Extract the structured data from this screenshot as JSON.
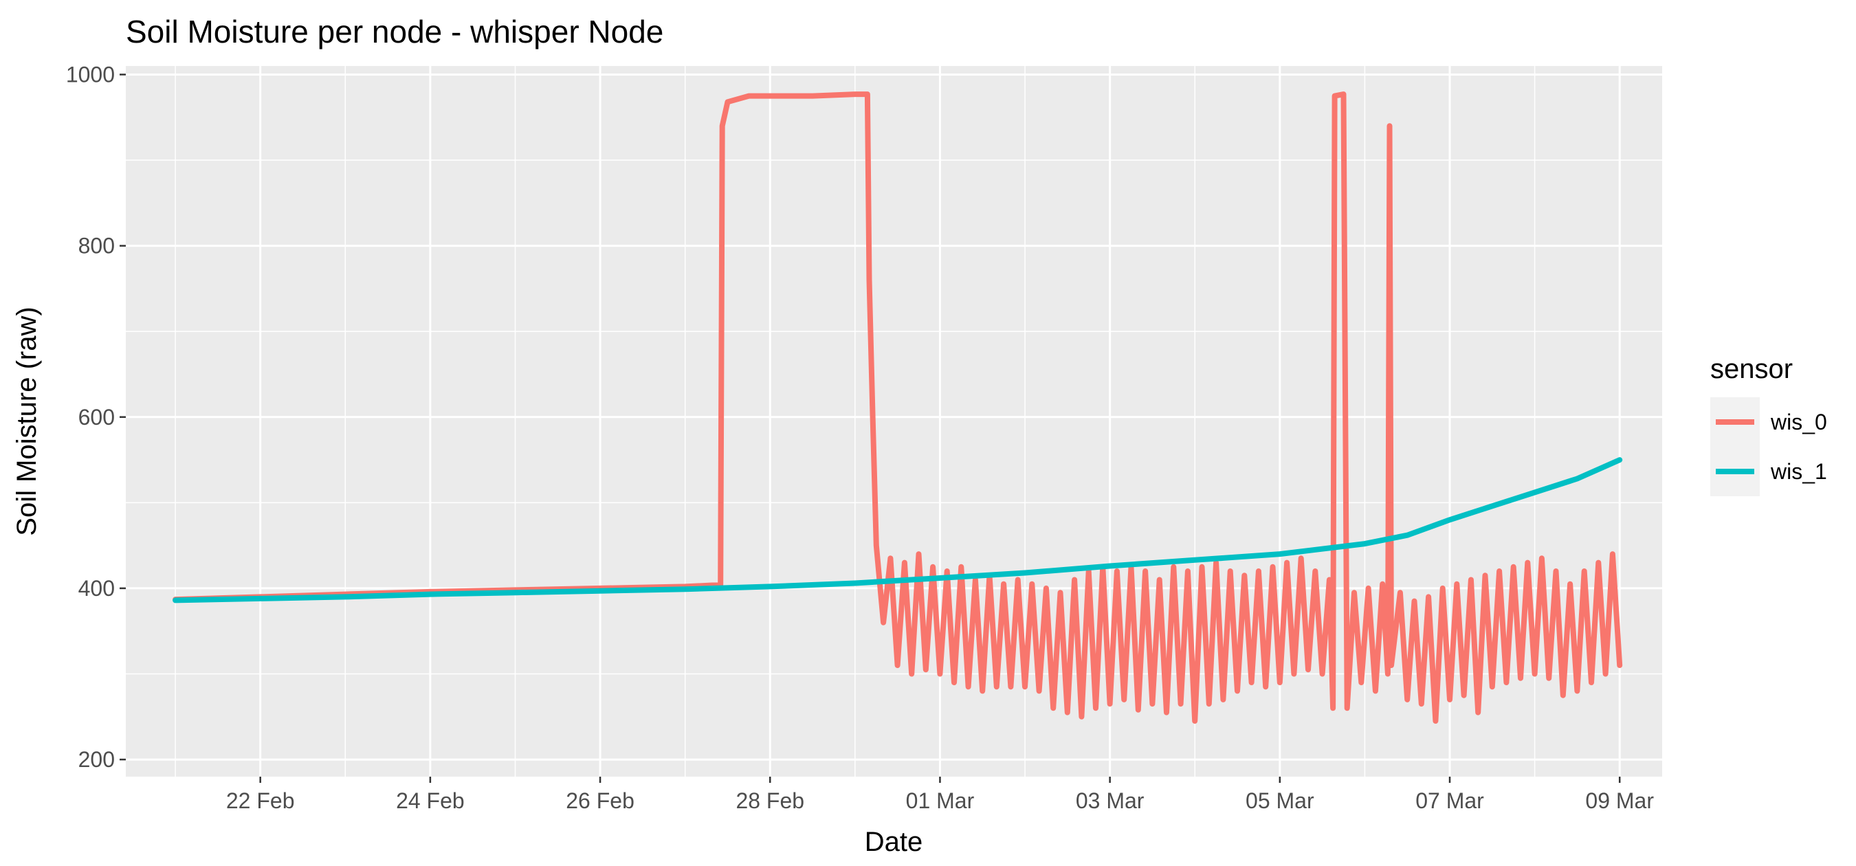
{
  "chart_data": {
    "type": "line",
    "title": "Soil Moisture per node - whisper Node",
    "xlabel": "Date",
    "ylabel": "Soil Moisture (raw)",
    "ylim": [
      180,
      1010
    ],
    "xlim": [
      "2024-02-20T10:00",
      "2024-03-09T12:00"
    ],
    "x_ticks": [
      {
        "date": "2024-02-22",
        "label": "22 Feb"
      },
      {
        "date": "2024-02-24",
        "label": "24 Feb"
      },
      {
        "date": "2024-02-26",
        "label": "26 Feb"
      },
      {
        "date": "2024-02-28",
        "label": "28 Feb"
      },
      {
        "date": "2024-03-01",
        "label": "01 Mar"
      },
      {
        "date": "2024-03-03",
        "label": "03 Mar"
      },
      {
        "date": "2024-03-05",
        "label": "05 Mar"
      },
      {
        "date": "2024-03-07",
        "label": "07 Mar"
      },
      {
        "date": "2024-03-09",
        "label": "09 Mar"
      }
    ],
    "y_ticks": [
      200,
      400,
      600,
      800,
      1000
    ],
    "grid": true,
    "background": "#EBEBEB",
    "legend": {
      "title": "sensor",
      "position": "right"
    },
    "series": [
      {
        "name": "wis_0",
        "color": "#F8766D",
        "points": [
          [
            "2024-02-21T00:00",
            387
          ],
          [
            "2024-02-22T00:00",
            390
          ],
          [
            "2024-02-23T00:00",
            393
          ],
          [
            "2024-02-24T00:00",
            396
          ],
          [
            "2024-02-25T00:00",
            398
          ],
          [
            "2024-02-26T00:00",
            400
          ],
          [
            "2024-02-27T00:00",
            402
          ],
          [
            "2024-02-27T10:00",
            404
          ],
          [
            "2024-02-27T10:30",
            940
          ],
          [
            "2024-02-27T12:00",
            968
          ],
          [
            "2024-02-27T18:00",
            975
          ],
          [
            "2024-02-28T12:00",
            975
          ],
          [
            "2024-02-29T00:00",
            977
          ],
          [
            "2024-02-29T03:30",
            977
          ],
          [
            "2024-02-29T04:00",
            760
          ],
          [
            "2024-02-29T05:00",
            600
          ],
          [
            "2024-02-29T06:00",
            450
          ],
          [
            "2024-02-29T08:00",
            360
          ],
          [
            "2024-02-29T10:00",
            435
          ],
          [
            "2024-02-29T12:00",
            310
          ],
          [
            "2024-02-29T14:00",
            430
          ],
          [
            "2024-02-29T16:00",
            300
          ],
          [
            "2024-02-29T18:00",
            440
          ],
          [
            "2024-02-29T20:00",
            305
          ],
          [
            "2024-02-29T22:00",
            425
          ],
          [
            "2024-03-01T00:00",
            300
          ],
          [
            "2024-03-01T02:00",
            420
          ],
          [
            "2024-03-01T04:00",
            290
          ],
          [
            "2024-03-01T06:00",
            425
          ],
          [
            "2024-03-01T08:00",
            285
          ],
          [
            "2024-03-01T10:00",
            410
          ],
          [
            "2024-03-01T12:00",
            280
          ],
          [
            "2024-03-01T14:00",
            415
          ],
          [
            "2024-03-01T16:00",
            285
          ],
          [
            "2024-03-01T18:00",
            405
          ],
          [
            "2024-03-01T20:00",
            285
          ],
          [
            "2024-03-01T22:00",
            410
          ],
          [
            "2024-03-02T00:00",
            285
          ],
          [
            "2024-03-02T02:00",
            405
          ],
          [
            "2024-03-02T04:00",
            280
          ],
          [
            "2024-03-02T06:00",
            400
          ],
          [
            "2024-03-02T08:00",
            260
          ],
          [
            "2024-03-02T10:00",
            395
          ],
          [
            "2024-03-02T12:00",
            255
          ],
          [
            "2024-03-02T14:00",
            410
          ],
          [
            "2024-03-02T16:00",
            250
          ],
          [
            "2024-03-02T18:00",
            420
          ],
          [
            "2024-03-02T20:00",
            260
          ],
          [
            "2024-03-02T22:00",
            425
          ],
          [
            "2024-03-03T00:00",
            265
          ],
          [
            "2024-03-03T02:00",
            420
          ],
          [
            "2024-03-03T04:00",
            270
          ],
          [
            "2024-03-03T06:00",
            425
          ],
          [
            "2024-03-03T08:00",
            258
          ],
          [
            "2024-03-03T10:00",
            420
          ],
          [
            "2024-03-03T12:00",
            265
          ],
          [
            "2024-03-03T14:00",
            410
          ],
          [
            "2024-03-03T16:00",
            255
          ],
          [
            "2024-03-03T18:00",
            425
          ],
          [
            "2024-03-03T20:00",
            265
          ],
          [
            "2024-03-03T22:00",
            420
          ],
          [
            "2024-03-04T00:00",
            245
          ],
          [
            "2024-03-04T02:00",
            425
          ],
          [
            "2024-03-04T04:00",
            265
          ],
          [
            "2024-03-04T06:00",
            430
          ],
          [
            "2024-03-04T08:00",
            270
          ],
          [
            "2024-03-04T10:00",
            420
          ],
          [
            "2024-03-04T12:00",
            280
          ],
          [
            "2024-03-04T14:00",
            415
          ],
          [
            "2024-03-04T16:00",
            290
          ],
          [
            "2024-03-04T18:00",
            420
          ],
          [
            "2024-03-04T20:00",
            285
          ],
          [
            "2024-03-04T22:00",
            425
          ],
          [
            "2024-03-05T00:00",
            290
          ],
          [
            "2024-03-05T02:00",
            430
          ],
          [
            "2024-03-05T04:00",
            300
          ],
          [
            "2024-03-05T06:00",
            435
          ],
          [
            "2024-03-05T08:00",
            305
          ],
          [
            "2024-03-05T10:00",
            420
          ],
          [
            "2024-03-05T12:00",
            300
          ],
          [
            "2024-03-05T14:00",
            410
          ],
          [
            "2024-03-05T15:00",
            260
          ],
          [
            "2024-03-05T15:30",
            975
          ],
          [
            "2024-03-05T18:00",
            977
          ],
          [
            "2024-03-05T19:00",
            260
          ],
          [
            "2024-03-05T21:00",
            395
          ],
          [
            "2024-03-05T23:00",
            290
          ],
          [
            "2024-03-06T01:00",
            400
          ],
          [
            "2024-03-06T03:00",
            280
          ],
          [
            "2024-03-06T05:00",
            405
          ],
          [
            "2024-03-06T06:30",
            300
          ],
          [
            "2024-03-06T07:00",
            940
          ],
          [
            "2024-03-06T07:30",
            310
          ],
          [
            "2024-03-06T10:00",
            395
          ],
          [
            "2024-03-06T12:00",
            270
          ],
          [
            "2024-03-06T14:00",
            385
          ],
          [
            "2024-03-06T16:00",
            265
          ],
          [
            "2024-03-06T18:00",
            390
          ],
          [
            "2024-03-06T20:00",
            245
          ],
          [
            "2024-03-06T22:00",
            400
          ],
          [
            "2024-03-07T00:00",
            270
          ],
          [
            "2024-03-07T02:00",
            405
          ],
          [
            "2024-03-07T04:00",
            275
          ],
          [
            "2024-03-07T06:00",
            410
          ],
          [
            "2024-03-07T08:00",
            255
          ],
          [
            "2024-03-07T10:00",
            415
          ],
          [
            "2024-03-07T12:00",
            285
          ],
          [
            "2024-03-07T14:00",
            420
          ],
          [
            "2024-03-07T16:00",
            290
          ],
          [
            "2024-03-07T18:00",
            425
          ],
          [
            "2024-03-07T20:00",
            295
          ],
          [
            "2024-03-07T22:00",
            430
          ],
          [
            "2024-03-08T00:00",
            300
          ],
          [
            "2024-03-08T02:00",
            435
          ],
          [
            "2024-03-08T04:00",
            295
          ],
          [
            "2024-03-08T06:00",
            420
          ],
          [
            "2024-03-08T08:00",
            275
          ],
          [
            "2024-03-08T10:00",
            405
          ],
          [
            "2024-03-08T12:00",
            280
          ],
          [
            "2024-03-08T14:00",
            420
          ],
          [
            "2024-03-08T16:00",
            290
          ],
          [
            "2024-03-08T18:00",
            430
          ],
          [
            "2024-03-08T20:00",
            300
          ],
          [
            "2024-03-08T22:00",
            440
          ],
          [
            "2024-03-09T00:00",
            310
          ]
        ]
      },
      {
        "name": "wis_1",
        "color": "#00BFC4",
        "points": [
          [
            "2024-02-21T00:00",
            386
          ],
          [
            "2024-02-22T00:00",
            388
          ],
          [
            "2024-02-23T00:00",
            390
          ],
          [
            "2024-02-24T00:00",
            393
          ],
          [
            "2024-02-25T00:00",
            395
          ],
          [
            "2024-02-26T00:00",
            397
          ],
          [
            "2024-02-27T00:00",
            399
          ],
          [
            "2024-02-28T00:00",
            402
          ],
          [
            "2024-02-29T00:00",
            406
          ],
          [
            "2024-03-01T00:00",
            412
          ],
          [
            "2024-03-02T00:00",
            418
          ],
          [
            "2024-03-03T00:00",
            426
          ],
          [
            "2024-03-04T00:00",
            433
          ],
          [
            "2024-03-05T00:00",
            440
          ],
          [
            "2024-03-06T00:00",
            452
          ],
          [
            "2024-03-06T12:00",
            462
          ],
          [
            "2024-03-07T00:00",
            480
          ],
          [
            "2024-03-07T12:00",
            496
          ],
          [
            "2024-03-08T00:00",
            512
          ],
          [
            "2024-03-08T12:00",
            528
          ],
          [
            "2024-03-09T00:00",
            550
          ]
        ]
      }
    ]
  }
}
